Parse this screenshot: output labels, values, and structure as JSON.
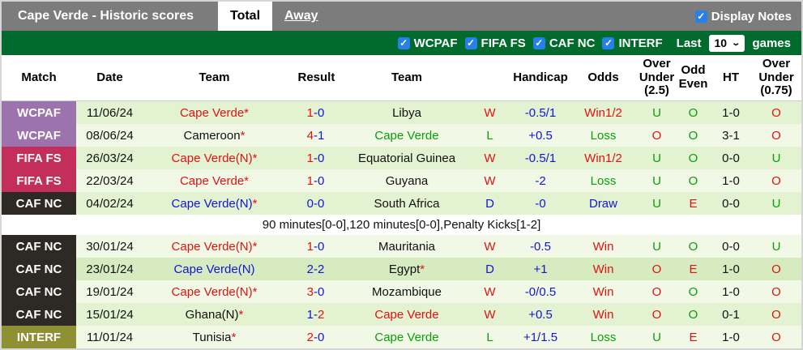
{
  "header": {
    "title": "Cape Verde - Historic scores",
    "tabs": [
      {
        "label": "Total",
        "active": true
      },
      {
        "label": "Away",
        "active": false
      }
    ],
    "display_notes_label": "Display Notes"
  },
  "filter_bar": {
    "checkboxes": [
      {
        "label": "WCPAF",
        "checked": true
      },
      {
        "label": "FIFA FS",
        "checked": true
      },
      {
        "label": "CAF NC",
        "checked": true
      },
      {
        "label": "INTERF",
        "checked": true
      }
    ],
    "last_label": "Last",
    "selected_games": "10",
    "games_label": "games"
  },
  "icons": {
    "check": "✓",
    "chevron_down": "⌄"
  },
  "colors": {
    "topbar": "#7c7c7c",
    "filter_bar": "#006b2c",
    "checkbox_blue": "#2680eb",
    "row_green": "#e3f2d0",
    "row_light": "#f1f9e6",
    "row_highlight": "#d6ecc0",
    "text_red": "#e11212",
    "text_blue": "#1414d6",
    "text_green": "#0a9e0a"
  },
  "badge_colors": {
    "WCPAF": "#9c73ad",
    "FIFA FS": "#c32e5a",
    "CAF NC": "#2d2a25",
    "INTERF": "#8d9033"
  },
  "table": {
    "columns": [
      {
        "key": "match",
        "label": "Match",
        "wrap": ""
      },
      {
        "key": "date",
        "label": "Date",
        "wrap": ""
      },
      {
        "key": "team-home",
        "label": "Team",
        "wrap": ""
      },
      {
        "key": "result",
        "label": "Result",
        "wrap": "w-result"
      },
      {
        "key": "team-away",
        "label": "Team",
        "wrap": ""
      },
      {
        "key": "wdl",
        "label": "",
        "wrap": ""
      },
      {
        "key": "handicap",
        "label": "Handicap",
        "wrap": ""
      },
      {
        "key": "odds",
        "label": "Odds",
        "wrap": ""
      },
      {
        "key": "over-under-25",
        "label": "Over Under (2.5)",
        "wrap": "w-ou25"
      },
      {
        "key": "odd-even",
        "label": "Odd Even",
        "wrap": "w-oe"
      },
      {
        "key": "ht",
        "label": "HT",
        "wrap": ""
      },
      {
        "key": "over-under-75",
        "label": "Over Under (0.75)",
        "wrap": "w-ou75"
      }
    ],
    "rows": [
      {
        "competition": "WCPAF",
        "date": "11/06/24",
        "home": [
          {
            "t": "Cape Verde*",
            "c": "red"
          }
        ],
        "result": [
          {
            "t": "1",
            "c": "red"
          },
          {
            "t": "-0",
            "c": "blue"
          }
        ],
        "away": [
          {
            "t": "Libya",
            "c": "dark"
          }
        ],
        "wdl": {
          "t": "W",
          "c": "red"
        },
        "handicap": {
          "t": "-0.5/1",
          "c": "blue"
        },
        "odds": {
          "t": "Win1/2",
          "c": "red"
        },
        "ou25": {
          "t": "U",
          "c": "green"
        },
        "oddeven": {
          "t": "O",
          "c": "green"
        },
        "ht": "1-0",
        "ou75": {
          "t": "O",
          "c": "red"
        },
        "highlight": false,
        "note": null
      },
      {
        "competition": "WCPAF",
        "date": "08/06/24",
        "home": [
          {
            "t": "Cameroon",
            "c": "dark"
          },
          {
            "t": "*",
            "c": "red"
          }
        ],
        "result": [
          {
            "t": "4",
            "c": "red"
          },
          {
            "t": "-1",
            "c": "blue"
          }
        ],
        "away": [
          {
            "t": "Cape Verde",
            "c": "green"
          }
        ],
        "wdl": {
          "t": "L",
          "c": "green"
        },
        "handicap": {
          "t": "+0.5",
          "c": "blue"
        },
        "odds": {
          "t": "Loss",
          "c": "green"
        },
        "ou25": {
          "t": "O",
          "c": "red"
        },
        "oddeven": {
          "t": "O",
          "c": "green"
        },
        "ht": "3-1",
        "ou75": {
          "t": "O",
          "c": "red"
        },
        "highlight": false,
        "note": null
      },
      {
        "competition": "FIFA FS",
        "date": "26/03/24",
        "home": [
          {
            "t": "Cape Verde(N)*",
            "c": "red"
          }
        ],
        "result": [
          {
            "t": "1",
            "c": "red"
          },
          {
            "t": "-0",
            "c": "blue"
          }
        ],
        "away": [
          {
            "t": "Equatorial Guinea",
            "c": "dark"
          }
        ],
        "wdl": {
          "t": "W",
          "c": "red"
        },
        "handicap": {
          "t": "-0.5/1",
          "c": "blue"
        },
        "odds": {
          "t": "Win1/2",
          "c": "red"
        },
        "ou25": {
          "t": "U",
          "c": "green"
        },
        "oddeven": {
          "t": "O",
          "c": "green"
        },
        "ht": "0-0",
        "ou75": {
          "t": "U",
          "c": "green"
        },
        "highlight": false,
        "note": null
      },
      {
        "competition": "FIFA FS",
        "date": "22/03/24",
        "home": [
          {
            "t": "Cape Verde*",
            "c": "red"
          }
        ],
        "result": [
          {
            "t": "1",
            "c": "red"
          },
          {
            "t": "-0",
            "c": "blue"
          }
        ],
        "away": [
          {
            "t": "Guyana",
            "c": "dark"
          }
        ],
        "wdl": {
          "t": "W",
          "c": "red"
        },
        "handicap": {
          "t": "-2",
          "c": "blue"
        },
        "odds": {
          "t": "Loss",
          "c": "green"
        },
        "ou25": {
          "t": "U",
          "c": "green"
        },
        "oddeven": {
          "t": "O",
          "c": "green"
        },
        "ht": "1-0",
        "ou75": {
          "t": "O",
          "c": "red"
        },
        "highlight": false,
        "note": null
      },
      {
        "competition": "CAF NC",
        "date": "04/02/24",
        "home": [
          {
            "t": "Cape Verde(N)",
            "c": "blue"
          },
          {
            "t": "*",
            "c": "red"
          }
        ],
        "result": [
          {
            "t": "0-0",
            "c": "blue"
          }
        ],
        "away": [
          {
            "t": "South Africa",
            "c": "dark"
          }
        ],
        "wdl": {
          "t": "D",
          "c": "blue"
        },
        "handicap": {
          "t": "-0",
          "c": "blue"
        },
        "odds": {
          "t": "Draw",
          "c": "blue"
        },
        "ou25": {
          "t": "U",
          "c": "green"
        },
        "oddeven": {
          "t": "E",
          "c": "red"
        },
        "ht": "0-0",
        "ou75": {
          "t": "U",
          "c": "green"
        },
        "highlight": false,
        "note": "90 minutes[0-0],120 minutes[0-0],Penalty Kicks[1-2]"
      },
      {
        "competition": "CAF NC",
        "date": "30/01/24",
        "home": [
          {
            "t": "Cape Verde(N)*",
            "c": "red"
          }
        ],
        "result": [
          {
            "t": "1",
            "c": "red"
          },
          {
            "t": "-0",
            "c": "blue"
          }
        ],
        "away": [
          {
            "t": "Mauritania",
            "c": "dark"
          }
        ],
        "wdl": {
          "t": "W",
          "c": "red"
        },
        "handicap": {
          "t": "-0.5",
          "c": "blue"
        },
        "odds": {
          "t": "Win",
          "c": "red"
        },
        "ou25": {
          "t": "U",
          "c": "green"
        },
        "oddeven": {
          "t": "O",
          "c": "green"
        },
        "ht": "0-0",
        "ou75": {
          "t": "U",
          "c": "green"
        },
        "highlight": false,
        "note": null
      },
      {
        "competition": "CAF NC",
        "date": "23/01/24",
        "home": [
          {
            "t": "Cape Verde(N)",
            "c": "blue"
          }
        ],
        "result": [
          {
            "t": "2-2",
            "c": "blue"
          }
        ],
        "away": [
          {
            "t": "Egypt",
            "c": "dark"
          },
          {
            "t": "*",
            "c": "red"
          }
        ],
        "wdl": {
          "t": "D",
          "c": "blue"
        },
        "handicap": {
          "t": "+1",
          "c": "blue"
        },
        "odds": {
          "t": "Win",
          "c": "red"
        },
        "ou25": {
          "t": "O",
          "c": "red"
        },
        "oddeven": {
          "t": "E",
          "c": "red"
        },
        "ht": "1-0",
        "ou75": {
          "t": "O",
          "c": "red"
        },
        "highlight": true,
        "note": null
      },
      {
        "competition": "CAF NC",
        "date": "19/01/24",
        "home": [
          {
            "t": "Cape Verde(N)*",
            "c": "red"
          }
        ],
        "result": [
          {
            "t": "3",
            "c": "red"
          },
          {
            "t": "-0",
            "c": "blue"
          }
        ],
        "away": [
          {
            "t": "Mozambique",
            "c": "dark"
          }
        ],
        "wdl": {
          "t": "W",
          "c": "red"
        },
        "handicap": {
          "t": "-0/0.5",
          "c": "blue"
        },
        "odds": {
          "t": "Win",
          "c": "red"
        },
        "ou25": {
          "t": "O",
          "c": "red"
        },
        "oddeven": {
          "t": "O",
          "c": "green"
        },
        "ht": "1-0",
        "ou75": {
          "t": "O",
          "c": "red"
        },
        "highlight": false,
        "note": null
      },
      {
        "competition": "CAF NC",
        "date": "15/01/24",
        "home": [
          {
            "t": "Ghana(N)",
            "c": "dark"
          },
          {
            "t": "*",
            "c": "red"
          }
        ],
        "result": [
          {
            "t": "1-",
            "c": "blue"
          },
          {
            "t": "2",
            "c": "red"
          }
        ],
        "away": [
          {
            "t": "Cape Verde",
            "c": "red"
          }
        ],
        "wdl": {
          "t": "W",
          "c": "red"
        },
        "handicap": {
          "t": "+0.5",
          "c": "blue"
        },
        "odds": {
          "t": "Win",
          "c": "red"
        },
        "ou25": {
          "t": "O",
          "c": "red"
        },
        "oddeven": {
          "t": "O",
          "c": "green"
        },
        "ht": "0-1",
        "ou75": {
          "t": "O",
          "c": "red"
        },
        "highlight": false,
        "note": null
      },
      {
        "competition": "INTERF",
        "date": "11/01/24",
        "home": [
          {
            "t": "Tunisia",
            "c": "dark"
          },
          {
            "t": "*",
            "c": "red"
          }
        ],
        "result": [
          {
            "t": "2",
            "c": "red"
          },
          {
            "t": "-0",
            "c": "blue"
          }
        ],
        "away": [
          {
            "t": "Cape Verde",
            "c": "green"
          }
        ],
        "wdl": {
          "t": "L",
          "c": "green"
        },
        "handicap": {
          "t": "+1/1.5",
          "c": "blue"
        },
        "odds": {
          "t": "Loss",
          "c": "green"
        },
        "ou25": {
          "t": "U",
          "c": "green"
        },
        "oddeven": {
          "t": "E",
          "c": "red"
        },
        "ht": "1-0",
        "ou75": {
          "t": "O",
          "c": "red"
        },
        "highlight": false,
        "note": null
      }
    ]
  }
}
